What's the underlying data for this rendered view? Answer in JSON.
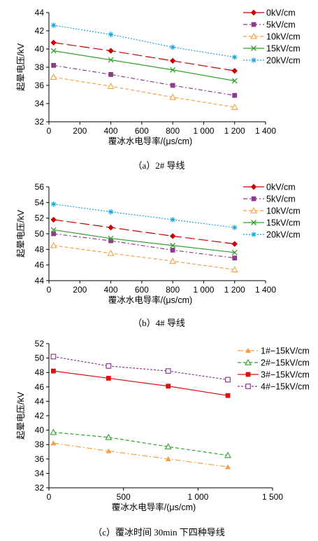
{
  "chart_data": [
    {
      "type": "line",
      "caption": "（a）2# 导线",
      "xlabel": "覆冰水电导率/(μs/cm)",
      "ylabel": "起晕电压/kV",
      "xlim": [
        0,
        1400
      ],
      "ylim": [
        32,
        44
      ],
      "xticks": [
        0,
        200,
        400,
        600,
        800,
        1000,
        1200,
        1400
      ],
      "xtick_labels": [
        "0",
        "200",
        "400",
        "600",
        "800",
        "1 000",
        "1 200",
        "1 400"
      ],
      "yticks": [
        32,
        34,
        36,
        38,
        40,
        42,
        44
      ],
      "x": [
        30,
        400,
        800,
        1200
      ],
      "legend_position": "right",
      "grid": false,
      "series": [
        {
          "name": "0kV/cm",
          "values": [
            40.7,
            39.8,
            38.7,
            37.6
          ],
          "color": "#cc0000",
          "marker": "diamond",
          "dash": "14 5"
        },
        {
          "name": "5kV/cm",
          "values": [
            38.2,
            37.2,
            36.0,
            34.9
          ],
          "color": "#8e3b8e",
          "marker": "square",
          "dash": "6 3 2 3"
        },
        {
          "name": "10kV/cm",
          "values": [
            36.9,
            35.9,
            34.7,
            33.6
          ],
          "color": "#f5a040",
          "marker": "triangle-open",
          "dash": "5 3"
        },
        {
          "name": "15kV/cm",
          "values": [
            39.8,
            38.8,
            37.7,
            36.5
          ],
          "color": "#33a02c",
          "marker": "x",
          "dash": ""
        },
        {
          "name": "20kV/cm",
          "values": [
            42.6,
            41.6,
            40.2,
            39.1
          ],
          "color": "#1aa3e0",
          "marker": "star",
          "dash": "2 2"
        }
      ]
    },
    {
      "type": "line",
      "caption": "（b）4# 导线",
      "xlabel": "覆冰水电导率/(μs/cm)",
      "ylabel": "起晕电压/kV",
      "xlim": [
        0,
        1400
      ],
      "ylim": [
        44,
        56
      ],
      "xticks": [
        0,
        200,
        400,
        600,
        800,
        1000,
        1200,
        1400
      ],
      "xtick_labels": [
        "0",
        "200",
        "400",
        "600",
        "800",
        "1 000",
        "1 200",
        "1 400"
      ],
      "yticks": [
        44,
        46,
        48,
        50,
        52,
        54,
        56
      ],
      "x": [
        30,
        400,
        800,
        1200
      ],
      "legend_position": "right",
      "grid": false,
      "series": [
        {
          "name": "0kV/cm",
          "values": [
            51.8,
            50.8,
            49.7,
            48.7
          ],
          "color": "#cc0000",
          "marker": "diamond",
          "dash": "14 5"
        },
        {
          "name": "5kV/cm",
          "values": [
            50.0,
            49.1,
            47.9,
            46.9
          ],
          "color": "#8e3b8e",
          "marker": "square",
          "dash": "6 3 2 3"
        },
        {
          "name": "10kV/cm",
          "values": [
            48.5,
            47.5,
            46.5,
            45.4
          ],
          "color": "#f5a040",
          "marker": "triangle-open",
          "dash": "5 3"
        },
        {
          "name": "15kV/cm",
          "values": [
            50.5,
            49.4,
            48.5,
            47.6
          ],
          "color": "#33a02c",
          "marker": "x",
          "dash": ""
        },
        {
          "name": "20kV/cm",
          "values": [
            53.8,
            52.8,
            51.8,
            50.8
          ],
          "color": "#1aa3e0",
          "marker": "star",
          "dash": "2 2"
        }
      ]
    },
    {
      "type": "line",
      "caption": "（c）覆冰时间 30min 下四种导线",
      "xlabel": "覆冰水电导率/(μs/cm)",
      "ylabel": "起晕电压/kV",
      "xlim": [
        0,
        1500
      ],
      "ylim": [
        32,
        52
      ],
      "xticks": [
        0,
        500,
        1000,
        1500
      ],
      "xtick_labels": [
        "0",
        "500",
        "1 000",
        "1 500"
      ],
      "yticks": [
        32,
        34,
        36,
        38,
        40,
        42,
        44,
        46,
        48,
        50,
        52
      ],
      "x": [
        30,
        400,
        800,
        1200
      ],
      "legend_position": "top-right",
      "grid": false,
      "series": [
        {
          "name": "1#−15kV/cm",
          "values": [
            38.2,
            37.1,
            36.0,
            34.9
          ],
          "color": "#f5a040",
          "marker": "triangle-filled",
          "dash": "8 3 2 3"
        },
        {
          "name": "2#−15kV/cm",
          "values": [
            39.7,
            39.0,
            37.7,
            36.5
          ],
          "color": "#33a02c",
          "marker": "triangle-open",
          "dash": "5 3"
        },
        {
          "name": "3#−15kV/cm",
          "values": [
            48.2,
            47.2,
            46.1,
            44.8
          ],
          "color": "#dd1111",
          "marker": "square",
          "dash": ""
        },
        {
          "name": "4#−15kV/cm",
          "values": [
            50.2,
            48.9,
            48.2,
            47.0
          ],
          "color": "#8e3b8e",
          "marker": "square-open",
          "dash": "3 2"
        }
      ]
    }
  ]
}
